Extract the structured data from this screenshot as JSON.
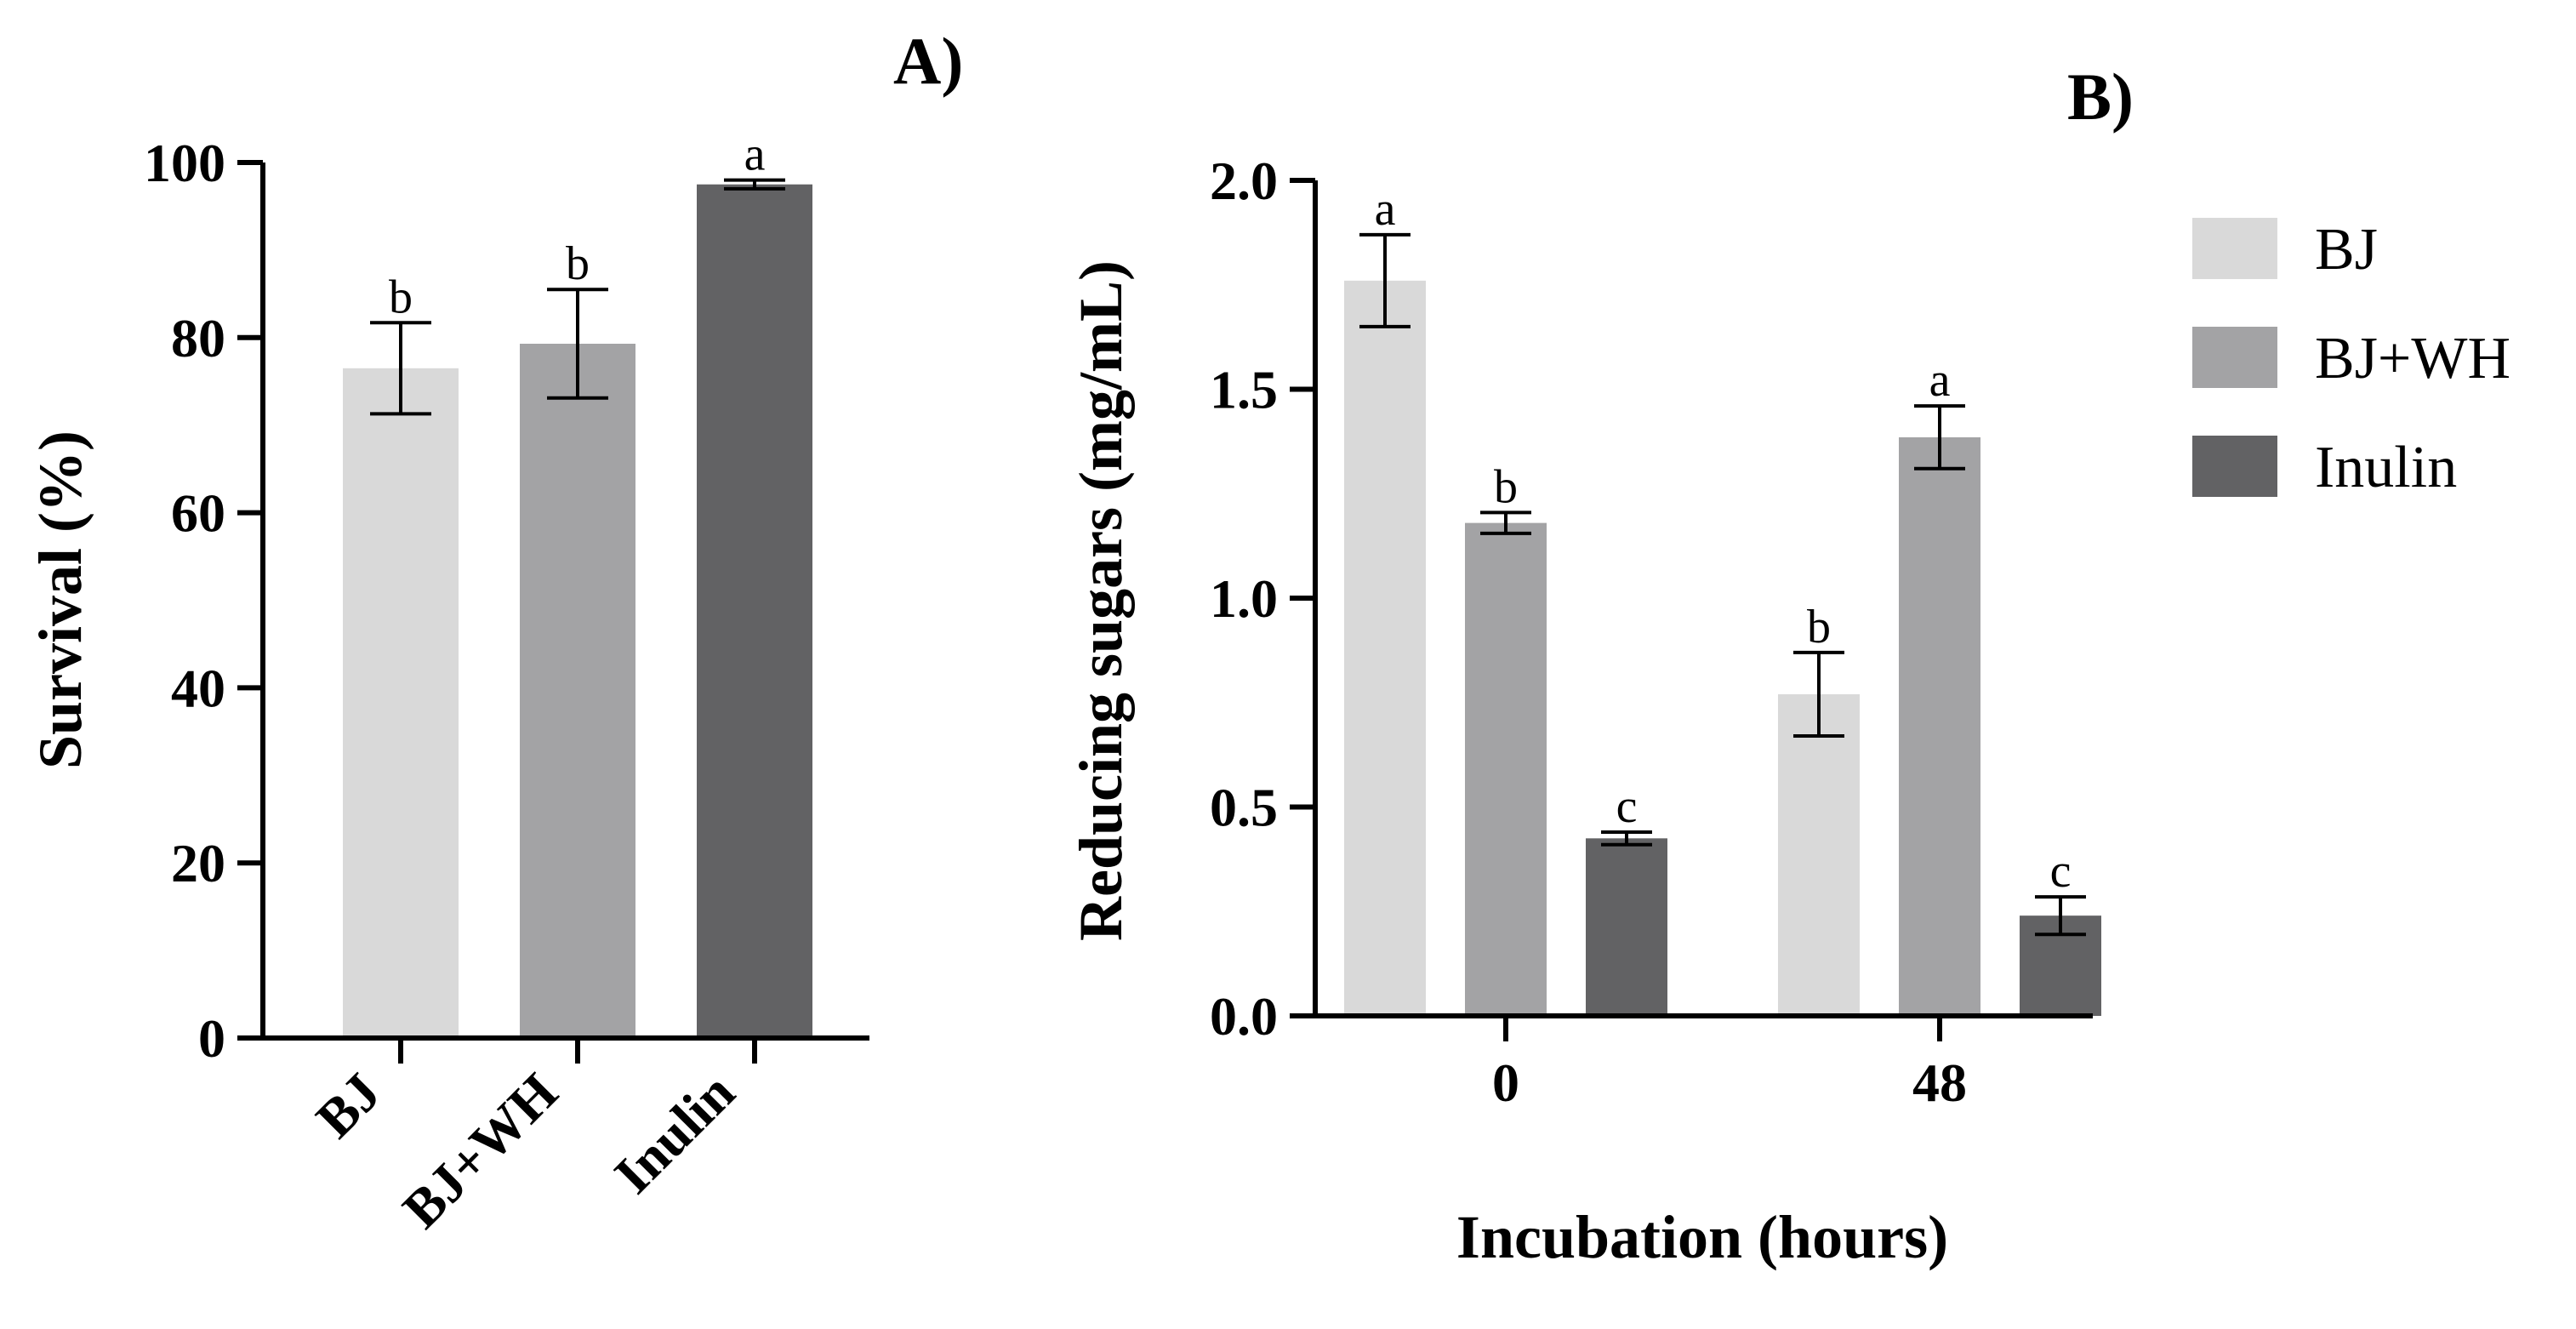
{
  "chart_data": [
    {
      "panel": "A)",
      "type": "bar",
      "categories": [
        "BJ",
        "BJ+WH",
        "Inulin"
      ],
      "values": [
        76.5,
        79.3,
        97.5
      ],
      "errors": [
        5.2,
        6.2,
        0.5
      ],
      "significance": [
        "b",
        "b",
        "a"
      ],
      "colors": [
        "#d9d9d9",
        "#a3a3a5",
        "#626264"
      ],
      "ylabel": "Survival (%)",
      "xlabel": "",
      "ylim": [
        0,
        100
      ],
      "yticks": [
        "0",
        "20",
        "40",
        "60",
        "80",
        "100"
      ]
    },
    {
      "panel": "B)",
      "type": "bar",
      "categories": [
        "0",
        "48"
      ],
      "series": [
        {
          "name": "BJ",
          "color": "#d9d9d9",
          "values": [
            1.76,
            0.77
          ],
          "errors": [
            0.11,
            0.1
          ],
          "significance": [
            "a",
            "b"
          ]
        },
        {
          "name": "BJ+WH",
          "color": "#a3a3a5",
          "values": [
            1.18,
            1.385
          ],
          "errors": [
            0.025,
            0.075
          ],
          "significance": [
            "b",
            "a"
          ]
        },
        {
          "name": "Inulin",
          "color": "#626264",
          "values": [
            0.425,
            0.24
          ],
          "errors": [
            0.015,
            0.045
          ],
          "significance": [
            "c",
            "c"
          ]
        }
      ],
      "ylabel": "Reducing sugars (mg/mL)",
      "xlabel": "Incubation (hours)",
      "ylim": [
        0,
        2.0
      ],
      "yticks": [
        "0.0",
        "0.5",
        "1.0",
        "1.5",
        "2.0"
      ],
      "legend": "right"
    }
  ]
}
